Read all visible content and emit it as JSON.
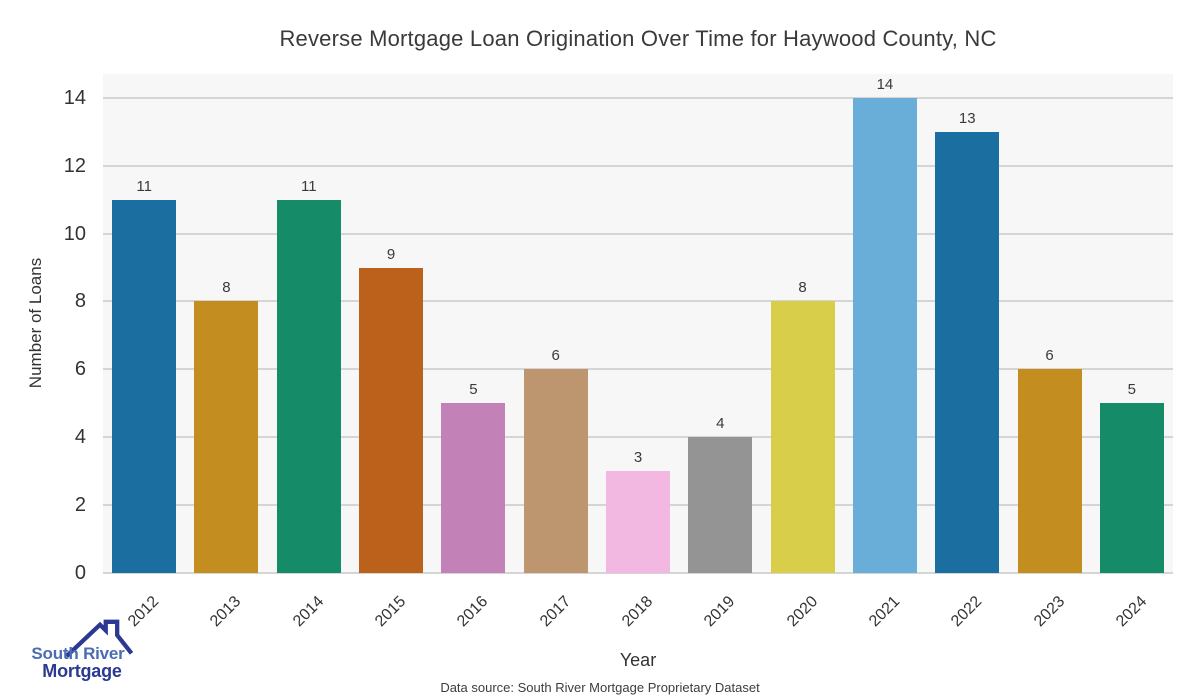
{
  "chart_data": {
    "type": "bar",
    "title": "Reverse Mortgage Loan Origination Over Time for Haywood County, NC",
    "xlabel": "Year",
    "ylabel": "Number of Loans",
    "categories": [
      "2012",
      "2013",
      "2014",
      "2015",
      "2016",
      "2017",
      "2018",
      "2019",
      "2020",
      "2021",
      "2022",
      "2023",
      "2024"
    ],
    "values": [
      11,
      8,
      11,
      9,
      5,
      6,
      3,
      4,
      8,
      14,
      13,
      6,
      5
    ],
    "bar_colors": [
      "#1a6ea0",
      "#c38d20",
      "#168b68",
      "#bb611b",
      "#c282b8",
      "#bd956e",
      "#f2b8e1",
      "#949494",
      "#d8ce4a",
      "#68aed8",
      "#1a6ea0",
      "#c38d20",
      "#168b68"
    ],
    "yticks": [
      0,
      2,
      4,
      6,
      8,
      10,
      12,
      14
    ],
    "ylim": [
      0,
      14.7
    ],
    "grid": "horizontal",
    "value_labels": true,
    "plot_background": "#f7f7f7",
    "grid_color": "#d5d5d5"
  },
  "footer": {
    "data_source": "Data source: South River Mortgage Proprietary Dataset"
  },
  "logo": {
    "line1": "South River",
    "line2": "Mortgage",
    "text_color_primary": "#4a6cb3",
    "text_color_secondary": "#2b3990",
    "roof_color": "#2b3990"
  }
}
